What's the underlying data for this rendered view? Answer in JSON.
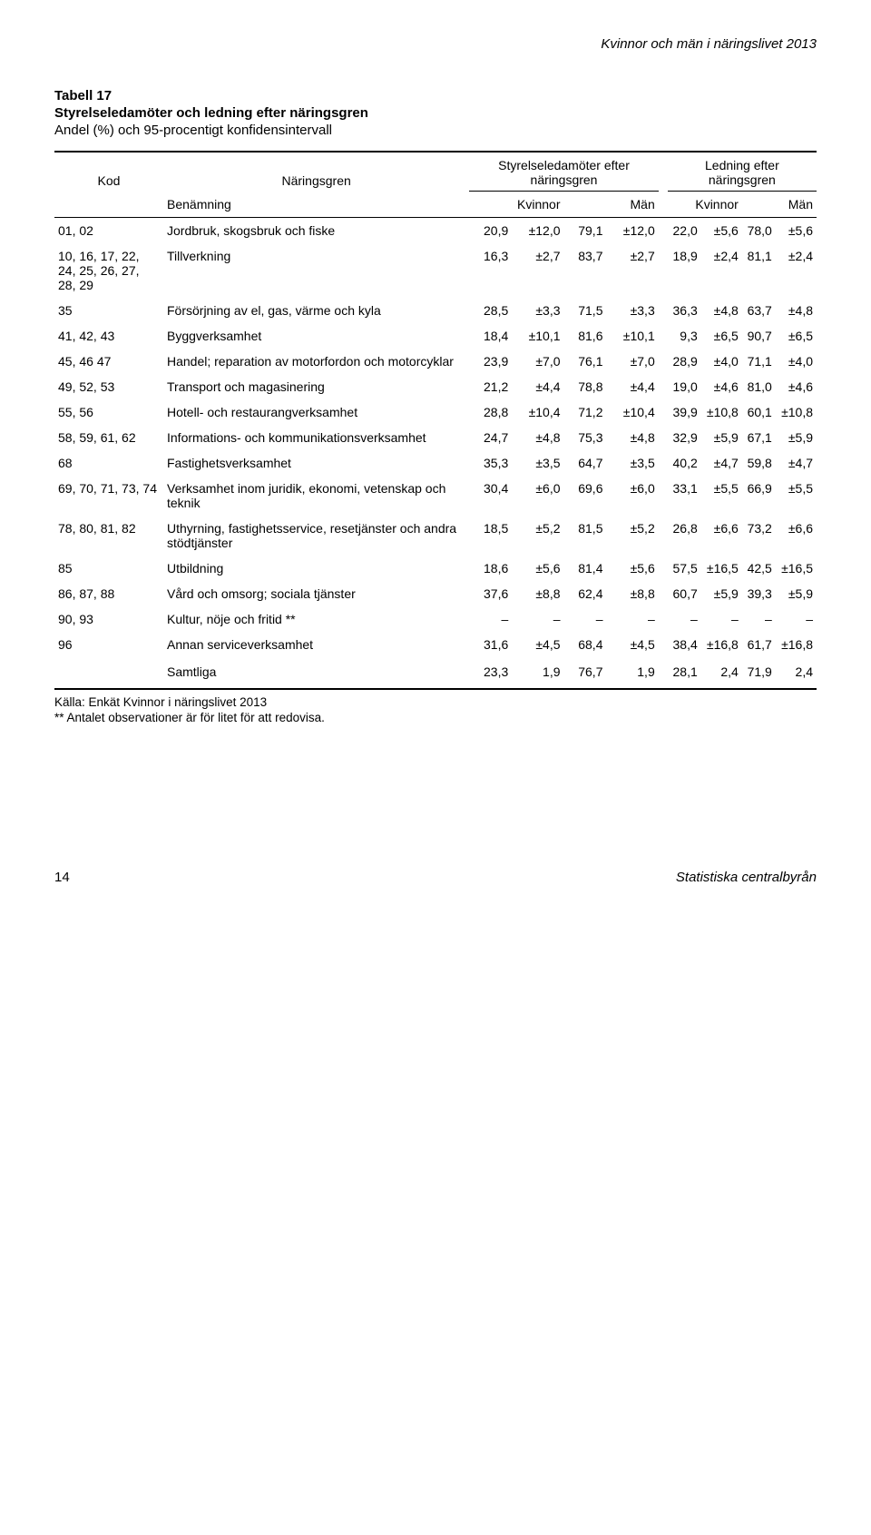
{
  "running_head": "Kvinnor och män i näringslivet 2013",
  "table_label": "Tabell 17",
  "table_title": "Styrelseledamöter och ledning efter näringsgren",
  "table_subtitle": "Andel (%) och 95-procentigt konfidensintervall",
  "head": {
    "kod": "Kod",
    "naringsgren": "Näringsgren",
    "spanner1": "Styrelseledamöter efter näringsgren",
    "spanner2": "Ledning efter näringsgren",
    "benamning": "Benämning",
    "kvinnor": "Kvinnor",
    "man": "Män"
  },
  "rows": [
    {
      "code": "01, 02",
      "name": "Jordbruk, skogsbruk och fiske",
      "v": [
        "20,9",
        "±12,0",
        "79,1",
        "±12,0",
        "22,0",
        "±5,6",
        "78,0",
        "±5,6"
      ]
    },
    {
      "code": "10, 16, 17, 22, 24, 25, 26, 27, 28, 29",
      "name": "Tillverkning",
      "v": [
        "16,3",
        "±2,7",
        "83,7",
        "±2,7",
        "18,9",
        "±2,4",
        "81,1",
        "±2,4"
      ]
    },
    {
      "code": "35",
      "name": "Försörjning av el, gas, värme och kyla",
      "v": [
        "28,5",
        "±3,3",
        "71,5",
        "±3,3",
        "36,3",
        "±4,8",
        "63,7",
        "±4,8"
      ]
    },
    {
      "code": "41, 42, 43",
      "name": "Byggverksamhet",
      "v": [
        "18,4",
        "±10,1",
        "81,6",
        "±10,1",
        "9,3",
        "±6,5",
        "90,7",
        "±6,5"
      ]
    },
    {
      "code": "45, 46 47",
      "name": "Handel; reparation av motorfordon och motorcyklar",
      "v": [
        "23,9",
        "±7,0",
        "76,1",
        "±7,0",
        "28,9",
        "±4,0",
        "71,1",
        "±4,0"
      ]
    },
    {
      "code": "49, 52, 53",
      "name": "Transport och magasinering",
      "v": [
        "21,2",
        "±4,4",
        "78,8",
        "±4,4",
        "19,0",
        "±4,6",
        "81,0",
        "±4,6"
      ]
    },
    {
      "code": "55, 56",
      "name": "Hotell- och restaurangverksamhet",
      "v": [
        "28,8",
        "±10,4",
        "71,2",
        "±10,4",
        "39,9",
        "±10,8",
        "60,1",
        "±10,8"
      ]
    },
    {
      "code": "58, 59, 61, 62",
      "name": "Informations- och kommunikationsverksamhet",
      "v": [
        "24,7",
        "±4,8",
        "75,3",
        "±4,8",
        "32,9",
        "±5,9",
        "67,1",
        "±5,9"
      ]
    },
    {
      "code": "68",
      "name": "Fastighetsverksamhet",
      "v": [
        "35,3",
        "±3,5",
        "64,7",
        "±3,5",
        "40,2",
        "±4,7",
        "59,8",
        "±4,7"
      ]
    },
    {
      "code": "69, 70, 71, 73, 74",
      "name": "Verksamhet inom juridik, ekonomi, vetenskap och teknik",
      "v": [
        "30,4",
        "±6,0",
        "69,6",
        "±6,0",
        "33,1",
        "±5,5",
        "66,9",
        "±5,5"
      ]
    },
    {
      "code": "78, 80, 81, 82",
      "name": "Uthyrning, fastighetsservice, resetjänster och andra stödtjänster",
      "v": [
        "18,5",
        "±5,2",
        "81,5",
        "±5,2",
        "26,8",
        "±6,6",
        "73,2",
        "±6,6"
      ]
    },
    {
      "code": "85",
      "name": "Utbildning",
      "v": [
        "18,6",
        "±5,6",
        "81,4",
        "±5,6",
        "57,5",
        "±16,5",
        "42,5",
        "±16,5"
      ]
    },
    {
      "code": "86, 87, 88",
      "name": "Vård och omsorg; sociala tjänster",
      "v": [
        "37,6",
        "±8,8",
        "62,4",
        "±8,8",
        "60,7",
        "±5,9",
        "39,3",
        "±5,9"
      ]
    },
    {
      "code": "90, 93",
      "name": "Kultur, nöje och fritid **",
      "v": [
        "–",
        "–",
        "–",
        "–",
        "–",
        "–",
        "–",
        "–"
      ]
    },
    {
      "code": "96",
      "name": "Annan serviceverksamhet",
      "v": [
        "31,6",
        "±4,5",
        "68,4",
        "±4,5",
        "38,4",
        "±16,8",
        "61,7",
        "±16,8"
      ]
    }
  ],
  "totals": {
    "code": "",
    "name": "Samtliga",
    "v": [
      "23,3",
      "1,9",
      "76,7",
      "1,9",
      "28,1",
      "2,4",
      "71,9",
      "2,4"
    ]
  },
  "source": "Källa: Enkät Kvinnor i näringslivet 2013",
  "footnote": "** Antalet observationer är för litet för att redovisa.",
  "footer_page": "14",
  "footer_publisher": "Statistiska centralbyrån",
  "colors": {
    "text": "#000000",
    "background": "#ffffff",
    "rule": "#000000"
  },
  "font_sizes_pt": {
    "running_head": 11,
    "table_heading": 11,
    "body": 10.5,
    "footnote": 10
  }
}
